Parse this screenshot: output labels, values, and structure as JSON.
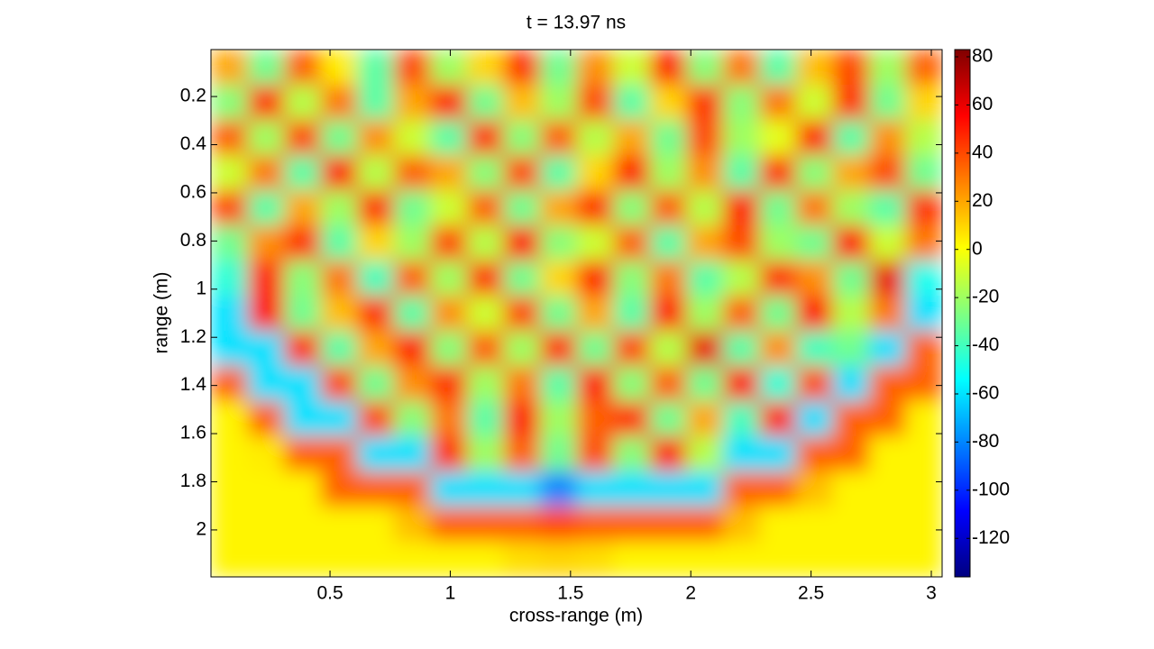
{
  "chart_data": {
    "type": "heatmap",
    "title": "t = 13.97 ns",
    "xlabel": "cross-range (m)",
    "ylabel": "range (m)",
    "xlim": [
      0.005,
      3.045
    ],
    "ylim": [
      0.005,
      2.195
    ],
    "y_reversed": true,
    "xticks": [
      0.5,
      1,
      1.5,
      2,
      2.5,
      3
    ],
    "yticks": [
      0.2,
      0.4,
      0.6,
      0.8,
      1,
      1.2,
      1.4,
      1.6,
      1.8,
      2
    ],
    "colormap": "jet",
    "clim": [
      -136,
      83
    ],
    "colorbar_ticks": [
      80,
      60,
      40,
      20,
      0,
      -20,
      -40,
      -60,
      -80,
      -100,
      -120
    ],
    "z": [
      [
        20,
        -30,
        35,
        5,
        -35,
        40,
        -20,
        10,
        45,
        -30,
        25,
        -10,
        50,
        -25,
        30,
        -35,
        15,
        40,
        -20,
        35
      ],
      [
        -25,
        45,
        -15,
        30,
        -35,
        20,
        50,
        -30,
        15,
        -20,
        40,
        -35,
        10,
        45,
        -25,
        30,
        -10,
        45,
        -30,
        10
      ],
      [
        35,
        -20,
        40,
        -30,
        25,
        -10,
        -35,
        45,
        -25,
        35,
        -15,
        20,
        -30,
        40,
        -20,
        -5,
        50,
        -35,
        25,
        -15
      ],
      [
        -10,
        30,
        -35,
        50,
        -15,
        35,
        20,
        -25,
        40,
        -35,
        10,
        50,
        -20,
        25,
        -35,
        45,
        -25,
        20,
        40,
        -30
      ],
      [
        40,
        -35,
        20,
        -20,
        45,
        -30,
        -10,
        35,
        -30,
        20,
        45,
        -25,
        35,
        -15,
        50,
        -30,
        30,
        -20,
        -35,
        45
      ],
      [
        -30,
        25,
        45,
        -35,
        10,
        -20,
        40,
        -15,
        55,
        -25,
        -10,
        35,
        -35,
        20,
        40,
        -20,
        -30,
        55,
        -10,
        30
      ],
      [
        -45,
        50,
        -25,
        30,
        -40,
        35,
        -20,
        45,
        -30,
        10,
        50,
        -25,
        30,
        -35,
        -15,
        45,
        25,
        -30,
        60,
        -50
      ],
      [
        -60,
        55,
        -30,
        15,
        45,
        -35,
        25,
        -10,
        40,
        -30,
        20,
        -35,
        50,
        -20,
        35,
        -30,
        55,
        -15,
        30,
        -60
      ],
      [
        -60,
        -60,
        45,
        -35,
        20,
        50,
        -25,
        35,
        -20,
        45,
        -30,
        40,
        -15,
        60,
        -35,
        25,
        -40,
        -30,
        -60,
        35
      ],
      [
        35,
        -60,
        -60,
        40,
        -30,
        25,
        45,
        -20,
        30,
        -35,
        50,
        -25,
        35,
        -30,
        55,
        -45,
        40,
        -60,
        35,
        35
      ],
      [
        3,
        35,
        -60,
        -60,
        40,
        -25,
        30,
        -35,
        50,
        -20,
        35,
        45,
        -30,
        20,
        -40,
        50,
        -60,
        35,
        35,
        3
      ],
      [
        3,
        5,
        35,
        35,
        -60,
        -60,
        45,
        -20,
        35,
        -30,
        40,
        -25,
        50,
        -15,
        -60,
        -60,
        35,
        35,
        3,
        3
      ],
      [
        3,
        3,
        3,
        35,
        35,
        35,
        -60,
        -60,
        -60,
        -80,
        -60,
        -60,
        -60,
        -60,
        35,
        35,
        15,
        3,
        3,
        3
      ],
      [
        3,
        3,
        3,
        3,
        3,
        15,
        35,
        35,
        35,
        40,
        35,
        35,
        35,
        35,
        15,
        3,
        3,
        3,
        3,
        3
      ],
      [
        3,
        3,
        3,
        3,
        3,
        3,
        3,
        3,
        8,
        10,
        8,
        3,
        3,
        3,
        3,
        3,
        3,
        3,
        3,
        3
      ]
    ]
  }
}
